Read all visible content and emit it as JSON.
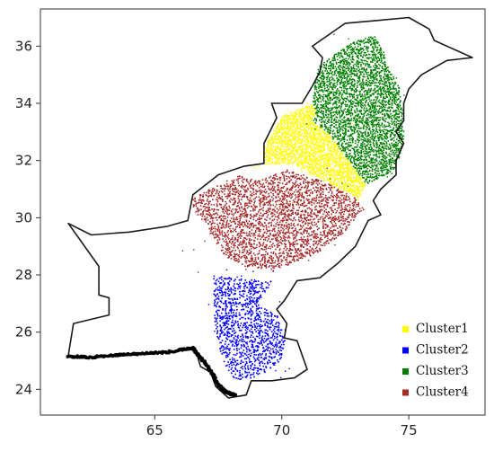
{
  "colors": {
    "cluster1": "#ffff00",
    "cluster2": "#0000ff",
    "cluster3": "#008000",
    "cluster4": "#a52a2a",
    "boundary": "#1a1a1a",
    "coast": "#000000"
  },
  "chart_data": {
    "type": "scatter",
    "title": "",
    "xlabel": "",
    "ylabel": "",
    "xlim": [
      60.5,
      78.0
    ],
    "ylim": [
      23.1,
      37.3
    ],
    "xticks": [
      "65",
      "70",
      "75"
    ],
    "yticks": [
      "24",
      "26",
      "28",
      "30",
      "32",
      "34",
      "36"
    ],
    "legend_position": "bottom-right",
    "series": [
      {
        "name": "Cluster1",
        "color": "#ffff00"
      },
      {
        "name": "Cluster2",
        "color": "#0000ff"
      },
      {
        "name": "Cluster3",
        "color": "#008000"
      },
      {
        "name": "Cluster4",
        "color": "#a52a2a"
      }
    ],
    "boundary": [
      [
        61.6,
        29.8
      ],
      [
        62.5,
        29.4
      ],
      [
        64.0,
        29.5
      ],
      [
        65.5,
        29.7
      ],
      [
        66.3,
        29.9
      ],
      [
        66.5,
        30.8
      ],
      [
        67.5,
        31.5
      ],
      [
        68.5,
        31.8
      ],
      [
        69.3,
        31.9
      ],
      [
        69.3,
        32.6
      ],
      [
        69.8,
        33.5
      ],
      [
        69.6,
        34.0
      ],
      [
        70.8,
        34.0
      ],
      [
        71.2,
        34.6
      ],
      [
        71.5,
        35.1
      ],
      [
        71.6,
        35.6
      ],
      [
        71.2,
        36.0
      ],
      [
        72.5,
        36.8
      ],
      [
        73.8,
        36.9
      ],
      [
        75.0,
        37.0
      ],
      [
        75.8,
        36.6
      ],
      [
        76.0,
        36.2
      ],
      [
        77.5,
        35.6
      ],
      [
        76.5,
        35.5
      ],
      [
        75.5,
        35.0
      ],
      [
        75.0,
        34.5
      ],
      [
        74.8,
        34.0
      ],
      [
        74.8,
        33.4
      ],
      [
        74.5,
        33.0
      ],
      [
        74.8,
        32.6
      ],
      [
        74.5,
        32.0
      ],
      [
        74.5,
        31.5
      ],
      [
        73.9,
        31.0
      ],
      [
        73.6,
        30.6
      ],
      [
        73.9,
        30.1
      ],
      [
        73.4,
        29.9
      ],
      [
        72.9,
        29.0
      ],
      [
        72.2,
        28.4
      ],
      [
        71.5,
        27.9
      ],
      [
        70.6,
        27.8
      ],
      [
        70.1,
        27.1
      ],
      [
        69.8,
        26.8
      ],
      [
        70.2,
        26.3
      ],
      [
        70.1,
        25.8
      ],
      [
        70.6,
        25.7
      ],
      [
        71.0,
        24.7
      ],
      [
        70.5,
        24.4
      ],
      [
        69.6,
        24.3
      ],
      [
        68.8,
        24.3
      ],
      [
        68.6,
        23.8
      ],
      [
        67.9,
        23.7
      ],
      [
        67.4,
        24.1
      ],
      [
        67.2,
        24.6
      ],
      [
        66.8,
        24.8
      ],
      [
        66.6,
        25.4
      ],
      [
        65.5,
        25.3
      ],
      [
        64.2,
        25.2
      ],
      [
        62.4,
        25.1
      ],
      [
        61.6,
        25.2
      ],
      [
        61.8,
        26.3
      ],
      [
        63.2,
        26.6
      ],
      [
        63.2,
        27.2
      ],
      [
        62.8,
        27.3
      ],
      [
        62.8,
        28.3
      ],
      [
        61.6,
        29.8
      ]
    ],
    "region_polygons": {
      "Cluster1": [
        [
          69.3,
          32.5
        ],
        [
          70.0,
          33.6
        ],
        [
          71.2,
          34.0
        ],
        [
          71.3,
          33.8
        ],
        [
          71.2,
          33.4
        ],
        [
          71.8,
          33.0
        ],
        [
          73.3,
          31.2
        ],
        [
          73.0,
          30.7
        ],
        [
          71.5,
          31.4
        ],
        [
          70.4,
          31.9
        ],
        [
          69.3,
          31.9
        ]
      ],
      "Cluster2": [
        [
          67.3,
          28.0
        ],
        [
          67.3,
          26.8
        ],
        [
          67.4,
          25.9
        ],
        [
          67.7,
          24.9
        ],
        [
          68.2,
          24.3
        ],
        [
          68.9,
          24.4
        ],
        [
          69.4,
          24.6
        ],
        [
          70.0,
          25.1
        ],
        [
          70.1,
          25.8
        ],
        [
          69.8,
          26.6
        ],
        [
          69.0,
          27.0
        ],
        [
          69.6,
          27.8
        ],
        [
          68.2,
          27.9
        ]
      ],
      "Cluster3": [
        [
          71.2,
          34.1
        ],
        [
          71.3,
          34.8
        ],
        [
          71.4,
          35.3
        ],
        [
          72.6,
          36.1
        ],
        [
          73.6,
          36.4
        ],
        [
          74.0,
          35.8
        ],
        [
          74.2,
          35.2
        ],
        [
          74.6,
          34.6
        ],
        [
          74.7,
          33.8
        ],
        [
          74.8,
          32.8
        ],
        [
          74.5,
          31.8
        ],
        [
          73.9,
          31.4
        ],
        [
          73.3,
          31.2
        ],
        [
          71.8,
          33.0
        ],
        [
          71.2,
          33.4
        ],
        [
          71.3,
          33.8
        ]
      ],
      "Cluster4": [
        [
          66.3,
          30.6
        ],
        [
          67.5,
          31.2
        ],
        [
          68.3,
          31.5
        ],
        [
          69.0,
          31.3
        ],
        [
          70.2,
          31.7
        ],
        [
          71.6,
          31.3
        ],
        [
          72.9,
          30.7
        ],
        [
          73.2,
          30.3
        ],
        [
          72.4,
          29.5
        ],
        [
          71.4,
          28.8
        ],
        [
          70.4,
          28.4
        ],
        [
          69.6,
          28.2
        ],
        [
          68.6,
          28.3
        ],
        [
          67.8,
          28.6
        ],
        [
          67.5,
          29.0
        ],
        [
          67.0,
          29.7
        ]
      ]
    },
    "coast_points": [
      [
        61.6,
        25.15
      ],
      [
        62.5,
        25.12
      ],
      [
        63.5,
        25.2
      ],
      [
        64.5,
        25.25
      ],
      [
        65.5,
        25.3
      ],
      [
        66.5,
        25.45
      ],
      [
        66.7,
        25.2
      ],
      [
        67.0,
        24.9
      ],
      [
        67.3,
        24.5
      ],
      [
        67.5,
        24.15
      ],
      [
        67.8,
        23.9
      ],
      [
        68.2,
        23.8
      ]
    ]
  }
}
